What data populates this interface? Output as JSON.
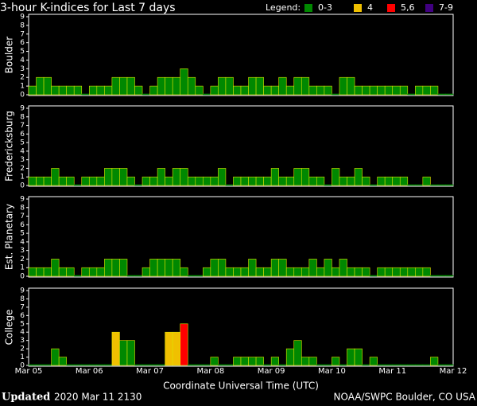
{
  "header": {
    "title": "3-hour K-indices for Last 7 days",
    "legend_label": "Legend:"
  },
  "legend": [
    {
      "name": "0-3",
      "color": "#008800",
      "from": 0
    },
    {
      "name": "4",
      "color": "#f0c000",
      "from": 4
    },
    {
      "name": "5,6",
      "color": "#ff0000",
      "from": 5
    },
    {
      "name": "7-9",
      "color": "#400080",
      "from": 7
    }
  ],
  "x_axis": {
    "label": "Coordinate Universal Time (UTC)",
    "day_labels": [
      "Mar 05",
      "Mar 06",
      "Mar 07",
      "Mar 08",
      "Mar 09",
      "Mar 10",
      "Mar 11",
      "Mar 12"
    ]
  },
  "footer": {
    "updated_label": "Updated",
    "updated": "2020 Mar 11 2130",
    "source": "NOAA/SWPC Boulder, CO USA"
  },
  "chart_data": [
    {
      "type": "bar",
      "ylabel": "Boulder",
      "ylim": [
        0,
        9
      ],
      "yticks": [
        0,
        1,
        2,
        3,
        4,
        5,
        6,
        7,
        8,
        9
      ],
      "values": [
        1,
        2,
        2,
        1,
        1,
        1,
        1,
        0,
        1,
        1,
        1,
        2,
        2,
        2,
        1,
        0,
        1,
        2,
        2,
        2,
        3,
        2,
        1,
        0,
        1,
        2,
        2,
        1,
        1,
        2,
        2,
        1,
        1,
        2,
        1,
        2,
        2,
        1,
        1,
        1,
        0,
        2,
        2,
        1,
        1,
        1,
        1,
        1,
        1,
        1,
        0,
        1,
        1,
        1,
        0,
        0
      ]
    },
    {
      "type": "bar",
      "ylabel": "Fredericksburg",
      "ylim": [
        0,
        9
      ],
      "yticks": [
        0,
        1,
        2,
        3,
        4,
        5,
        6,
        7,
        8,
        9
      ],
      "values": [
        1,
        1,
        1,
        2,
        1,
        1,
        0,
        1,
        1,
        1,
        2,
        2,
        2,
        1,
        0,
        1,
        1,
        2,
        1,
        2,
        2,
        1,
        1,
        1,
        1,
        2,
        0,
        1,
        1,
        1,
        1,
        1,
        2,
        1,
        1,
        2,
        2,
        1,
        1,
        0,
        2,
        1,
        1,
        2,
        1,
        0,
        1,
        1,
        1,
        1,
        0,
        0,
        1,
        0,
        0,
        0
      ]
    },
    {
      "type": "bar",
      "ylabel": "Est. Planetary",
      "ylim": [
        0,
        9
      ],
      "yticks": [
        0,
        1,
        2,
        3,
        4,
        5,
        6,
        7,
        8,
        9
      ],
      "values": [
        1,
        1,
        1,
        2,
        1,
        1,
        0,
        1,
        1,
        1,
        2,
        2,
        2,
        0,
        0,
        1,
        2,
        2,
        2,
        2,
        1,
        0,
        0,
        1,
        2,
        2,
        1,
        1,
        1,
        2,
        1,
        1,
        2,
        2,
        1,
        1,
        1,
        2,
        1,
        2,
        1,
        2,
        1,
        1,
        1,
        0,
        1,
        1,
        1,
        1,
        1,
        1,
        1,
        0,
        0,
        0
      ]
    },
    {
      "type": "bar",
      "ylabel": "College",
      "ylim": [
        0,
        9
      ],
      "yticks": [
        0,
        1,
        2,
        3,
        4,
        5,
        6,
        7,
        8,
        9
      ],
      "values": [
        0,
        0,
        0,
        2,
        1,
        0,
        0,
        0,
        0,
        0,
        0,
        4,
        3,
        3,
        0,
        0,
        0,
        0,
        4,
        4,
        5,
        0,
        0,
        0,
        1,
        0,
        0,
        1,
        1,
        1,
        1,
        0,
        1,
        0,
        2,
        3,
        1,
        1,
        0,
        0,
        1,
        0,
        2,
        2,
        0,
        1,
        0,
        0,
        0,
        0,
        0,
        0,
        0,
        1,
        0,
        0
      ]
    }
  ]
}
